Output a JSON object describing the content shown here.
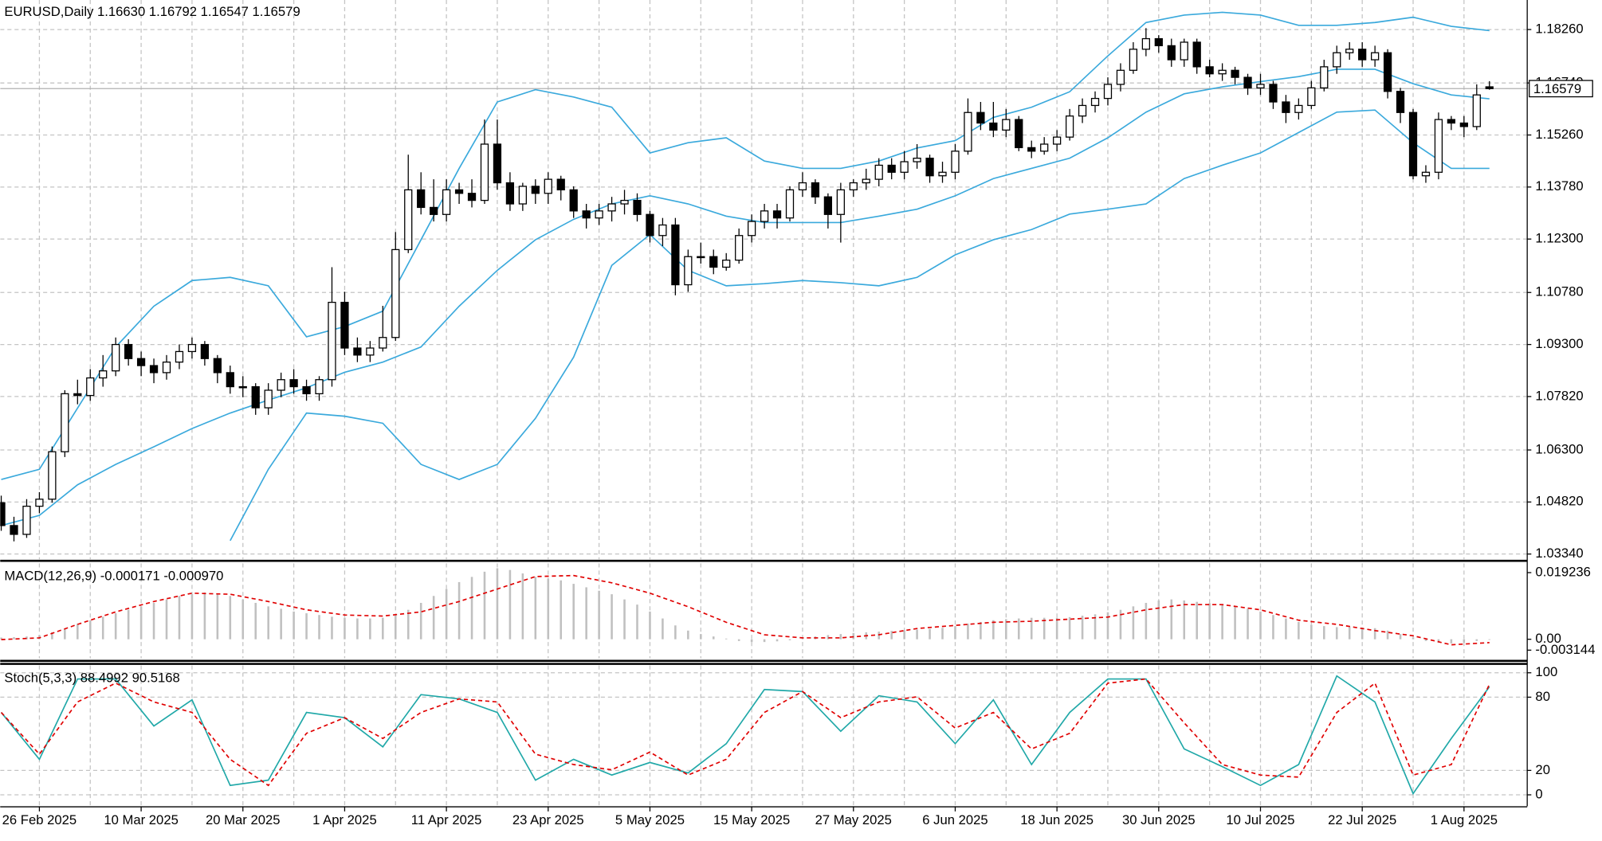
{
  "chart_data": [
    {
      "type": "candlestick",
      "title": "EURUSD,Daily  1.16630 1.16792 1.16547 1.16579",
      "price_label": "1.16579",
      "ylim": [
        1.0319,
        1.191
      ],
      "yticks": [
        {
          "value": 1.0334,
          "label": "1.03340"
        },
        {
          "value": 1.0482,
          "label": "1.04820"
        },
        {
          "value": 1.063,
          "label": "1.06300"
        },
        {
          "value": 1.0782,
          "label": "1.07820"
        },
        {
          "value": 1.093,
          "label": "1.09300"
        },
        {
          "value": 1.1078,
          "label": "1.10780"
        },
        {
          "value": 1.123,
          "label": "1.12300"
        },
        {
          "value": 1.1378,
          "label": "1.13780"
        },
        {
          "value": 1.1526,
          "label": "1.15260"
        },
        {
          "value": 1.1674,
          "label": "1.16740"
        },
        {
          "value": 1.1826,
          "label": "1.18260"
        }
      ],
      "grid": true,
      "candles": [
        [
          1.048,
          1.05,
          1.04,
          1.0415
        ],
        [
          1.0415,
          1.044,
          1.037,
          1.039
        ],
        [
          1.039,
          1.049,
          1.038,
          1.047
        ],
        [
          1.047,
          1.051,
          1.045,
          1.049
        ],
        [
          1.049,
          1.064,
          1.048,
          1.0625
        ],
        [
          1.0625,
          1.08,
          1.061,
          1.079
        ],
        [
          1.079,
          1.083,
          1.076,
          1.0785
        ],
        [
          1.0785,
          1.086,
          1.077,
          1.0835
        ],
        [
          1.0835,
          1.09,
          1.081,
          1.0855
        ],
        [
          1.0855,
          1.095,
          1.084,
          1.093
        ],
        [
          1.093,
          1.0945,
          1.087,
          1.089
        ],
        [
          1.089,
          1.091,
          1.084,
          1.087
        ],
        [
          1.087,
          1.089,
          1.082,
          1.085
        ],
        [
          1.085,
          1.09,
          1.083,
          1.088
        ],
        [
          1.088,
          1.093,
          1.086,
          1.091
        ],
        [
          1.091,
          1.095,
          1.089,
          1.093
        ],
        [
          1.093,
          1.094,
          1.087,
          1.089
        ],
        [
          1.089,
          1.09,
          1.082,
          1.085
        ],
        [
          1.085,
          1.087,
          1.079,
          1.081
        ],
        [
          1.081,
          1.084,
          1.078,
          1.081
        ],
        [
          1.081,
          1.082,
          1.073,
          1.075
        ],
        [
          1.075,
          1.082,
          1.073,
          1.08
        ],
        [
          1.08,
          1.085,
          1.078,
          1.083
        ],
        [
          1.083,
          1.086,
          1.079,
          1.081
        ],
        [
          1.081,
          1.083,
          1.077,
          1.079
        ],
        [
          1.079,
          1.084,
          1.077,
          1.083
        ],
        [
          1.083,
          1.115,
          1.081,
          1.105
        ],
        [
          1.105,
          1.108,
          1.09,
          1.092
        ],
        [
          1.092,
          1.095,
          1.088,
          1.09
        ],
        [
          1.09,
          1.094,
          1.088,
          1.092
        ],
        [
          1.092,
          1.104,
          1.091,
          1.095
        ],
        [
          1.095,
          1.125,
          1.094,
          1.12
        ],
        [
          1.12,
          1.147,
          1.119,
          1.137
        ],
        [
          1.137,
          1.142,
          1.13,
          1.132
        ],
        [
          1.132,
          1.14,
          1.128,
          1.13
        ],
        [
          1.13,
          1.14,
          1.128,
          1.137
        ],
        [
          1.137,
          1.139,
          1.133,
          1.136
        ],
        [
          1.136,
          1.14,
          1.132,
          1.134
        ],
        [
          1.134,
          1.157,
          1.133,
          1.15
        ],
        [
          1.15,
          1.157,
          1.137,
          1.139
        ],
        [
          1.139,
          1.142,
          1.131,
          1.133
        ],
        [
          1.133,
          1.139,
          1.131,
          1.138
        ],
        [
          1.138,
          1.14,
          1.133,
          1.136
        ],
        [
          1.136,
          1.142,
          1.133,
          1.14
        ],
        [
          1.14,
          1.141,
          1.134,
          1.137
        ],
        [
          1.137,
          1.138,
          1.129,
          1.131
        ],
        [
          1.131,
          1.133,
          1.126,
          1.129
        ],
        [
          1.129,
          1.133,
          1.127,
          1.131
        ],
        [
          1.131,
          1.135,
          1.128,
          1.133
        ],
        [
          1.133,
          1.137,
          1.13,
          1.134
        ],
        [
          1.134,
          1.136,
          1.128,
          1.13
        ],
        [
          1.13,
          1.131,
          1.122,
          1.124
        ],
        [
          1.124,
          1.129,
          1.121,
          1.127
        ],
        [
          1.127,
          1.129,
          1.107,
          1.11
        ],
        [
          1.11,
          1.12,
          1.108,
          1.118
        ],
        [
          1.118,
          1.122,
          1.116,
          1.118
        ],
        [
          1.118,
          1.12,
          1.113,
          1.115
        ],
        [
          1.115,
          1.119,
          1.114,
          1.117
        ],
        [
          1.117,
          1.126,
          1.116,
          1.124
        ],
        [
          1.124,
          1.13,
          1.122,
          1.128
        ],
        [
          1.128,
          1.133,
          1.126,
          1.131
        ],
        [
          1.131,
          1.133,
          1.126,
          1.129
        ],
        [
          1.129,
          1.138,
          1.128,
          1.137
        ],
        [
          1.137,
          1.142,
          1.135,
          1.139
        ],
        [
          1.139,
          1.14,
          1.133,
          1.135
        ],
        [
          1.135,
          1.136,
          1.126,
          1.13
        ],
        [
          1.13,
          1.139,
          1.122,
          1.137
        ],
        [
          1.137,
          1.14,
          1.135,
          1.139
        ],
        [
          1.139,
          1.143,
          1.137,
          1.14
        ],
        [
          1.14,
          1.146,
          1.138,
          1.144
        ],
        [
          1.144,
          1.146,
          1.14,
          1.142
        ],
        [
          1.142,
          1.148,
          1.14,
          1.145
        ],
        [
          1.145,
          1.15,
          1.143,
          1.146
        ],
        [
          1.146,
          1.147,
          1.139,
          1.141
        ],
        [
          1.141,
          1.145,
          1.139,
          1.142
        ],
        [
          1.142,
          1.15,
          1.14,
          1.148
        ],
        [
          1.148,
          1.163,
          1.147,
          1.159
        ],
        [
          1.159,
          1.162,
          1.154,
          1.156
        ],
        [
          1.156,
          1.162,
          1.152,
          1.154
        ],
        [
          1.154,
          1.16,
          1.152,
          1.157
        ],
        [
          1.157,
          1.158,
          1.148,
          1.149
        ],
        [
          1.149,
          1.151,
          1.146,
          1.148
        ],
        [
          1.148,
          1.152,
          1.147,
          1.15
        ],
        [
          1.15,
          1.154,
          1.148,
          1.152
        ],
        [
          1.152,
          1.16,
          1.151,
          1.158
        ],
        [
          1.158,
          1.163,
          1.156,
          1.161
        ],
        [
          1.161,
          1.165,
          1.159,
          1.163
        ],
        [
          1.163,
          1.169,
          1.161,
          1.167
        ],
        [
          1.167,
          1.173,
          1.165,
          1.171
        ],
        [
          1.171,
          1.179,
          1.17,
          1.177
        ],
        [
          1.177,
          1.183,
          1.175,
          1.18
        ],
        [
          1.18,
          1.181,
          1.176,
          1.178
        ],
        [
          1.178,
          1.18,
          1.172,
          1.174
        ],
        [
          1.174,
          1.18,
          1.172,
          1.179
        ],
        [
          1.179,
          1.18,
          1.17,
          1.172
        ],
        [
          1.172,
          1.174,
          1.169,
          1.17
        ],
        [
          1.17,
          1.173,
          1.168,
          1.171
        ],
        [
          1.171,
          1.172,
          1.167,
          1.169
        ],
        [
          1.169,
          1.17,
          1.164,
          1.166
        ],
        [
          1.166,
          1.17,
          1.164,
          1.167
        ],
        [
          1.167,
          1.168,
          1.16,
          1.162
        ],
        [
          1.162,
          1.164,
          1.156,
          1.159
        ],
        [
          1.159,
          1.163,
          1.157,
          1.161
        ],
        [
          1.161,
          1.168,
          1.16,
          1.166
        ],
        [
          1.166,
          1.174,
          1.165,
          1.172
        ],
        [
          1.172,
          1.178,
          1.17,
          1.176
        ],
        [
          1.176,
          1.179,
          1.174,
          1.177
        ],
        [
          1.177,
          1.179,
          1.172,
          1.174
        ],
        [
          1.174,
          1.178,
          1.172,
          1.176
        ],
        [
          1.176,
          1.177,
          1.163,
          1.165
        ],
        [
          1.165,
          1.166,
          1.156,
          1.159
        ],
        [
          1.159,
          1.16,
          1.14,
          1.141
        ],
        [
          1.141,
          1.144,
          1.139,
          1.142
        ],
        [
          1.142,
          1.159,
          1.14,
          1.157
        ],
        [
          1.157,
          1.158,
          1.154,
          1.156
        ],
        [
          1.156,
          1.158,
          1.152,
          1.155
        ],
        [
          1.155,
          1.167,
          1.154,
          1.164
        ],
        [
          1.1663,
          1.16792,
          1.16547,
          1.16579
        ]
      ],
      "series": [
        {
          "color": "#3aa9dc",
          "values": [
            1.0546,
            1.0575,
            1.0749,
            1.0923,
            1.1039,
            1.1112,
            1.1121,
            1.1097,
            1.0952,
            1.0981,
            1.1025,
            1.1228,
            1.1431,
            1.162,
            1.1655,
            1.1634,
            1.1605,
            1.1475,
            1.1504,
            1.1518,
            1.1452,
            1.1431,
            1.1431,
            1.1452,
            1.1489,
            1.151,
            1.1576,
            1.1605,
            1.1649,
            1.1751,
            1.1846,
            1.1867,
            1.1875,
            1.1867,
            1.1838,
            1.1838,
            1.1846,
            1.1861,
            1.1835,
            1.1823
          ]
        },
        {
          "color": "#3aa9dc",
          "values": [
            1.0415,
            1.0444,
            1.0531,
            1.0589,
            1.0639,
            1.0691,
            1.0735,
            1.0772,
            1.0807,
            1.0851,
            1.088,
            1.0923,
            1.1039,
            1.1141,
            1.1228,
            1.1286,
            1.133,
            1.1353,
            1.133,
            1.1295,
            1.1277,
            1.1277,
            1.1277,
            1.1295,
            1.1315,
            1.1353,
            1.1402,
            1.1431,
            1.146,
            1.1518,
            1.1591,
            1.1643,
            1.1663,
            1.1678,
            1.1692,
            1.1713,
            1.1713,
            1.1672,
            1.164,
            1.1629
          ]
        },
        {
          "color": "#3aa9dc",
          "values": [
            null,
            null,
            null,
            null,
            null,
            null,
            1.0372,
            1.0575,
            1.0735,
            1.0726,
            1.0706,
            1.0589,
            1.0546,
            1.0589,
            1.072,
            1.0894,
            1.1155,
            1.1243,
            1.1141,
            1.1097,
            1.1103,
            1.1112,
            1.1106,
            1.1097,
            1.1121,
            1.1185,
            1.1228,
            1.1257,
            1.1301,
            1.1315,
            1.133,
            1.1402,
            1.144,
            1.1475,
            1.1533,
            1.1591,
            1.1597,
            1.1504,
            1.1431,
            1.1431
          ]
        }
      ]
    },
    {
      "type": "macd",
      "title": "MACD(12,26,9) -0.000171 -0.000970",
      "ylim": [
        -0.0055,
        0.0219
      ],
      "yticks": [
        -0.003144,
        {
          "value": 0,
          "label": "0.00"
        },
        0.019236
      ],
      "histogram_color": "#c0c0c0",
      "histogram": [
        0.0005,
        0.0006,
        0.0008,
        0.0012,
        0.002,
        0.003,
        0.0045,
        0.0055,
        0.0065,
        0.0075,
        0.0085,
        0.0095,
        0.0105,
        0.0115,
        0.0125,
        0.013,
        0.0135,
        0.013,
        0.0125,
        0.0115,
        0.0105,
        0.0095,
        0.0088,
        0.008,
        0.0075,
        0.007,
        0.0065,
        0.0062,
        0.006,
        0.006,
        0.0062,
        0.007,
        0.0085,
        0.0105,
        0.0125,
        0.0145,
        0.0165,
        0.018,
        0.0195,
        0.0205,
        0.02,
        0.019,
        0.018,
        0.0175,
        0.017,
        0.016,
        0.015,
        0.014,
        0.013,
        0.0115,
        0.01,
        0.008,
        0.006,
        0.004,
        0.0025,
        0.0015,
        0.0008,
        0.0002,
        -0.0005,
        -0.0008,
        -0.0008,
        -0.0006,
        -0.0003,
        0.0002,
        0.0008,
        0.0012,
        0.0015,
        0.0018,
        0.002,
        0.0022,
        0.0024,
        0.0026,
        0.0028,
        0.003,
        0.0033,
        0.0038,
        0.0045,
        0.005,
        0.0055,
        0.0058,
        0.006,
        0.0062,
        0.0062,
        0.0062,
        0.0064,
        0.0068,
        0.0072,
        0.0078,
        0.0085,
        0.0095,
        0.0105,
        0.0112,
        0.0115,
        0.0112,
        0.0108,
        0.0104,
        0.01,
        0.0095,
        0.0088,
        0.008,
        0.007,
        0.006,
        0.005,
        0.0042,
        0.0038,
        0.0035,
        0.0035,
        0.0034,
        0.0032,
        0.0025,
        0.0015,
        0.0005,
        -0.0005,
        -0.001,
        -0.0012,
        -0.001,
        -0.0005,
        -0.000171
      ],
      "series": [
        {
          "color": "#e00000",
          "dashed": true,
          "values": [
            -0.0001,
            0.0004,
            0.0043,
            0.0079,
            0.0109,
            0.0133,
            0.013,
            0.0109,
            0.0085,
            0.007,
            0.0067,
            0.0079,
            0.0109,
            0.0145,
            0.0181,
            0.0184,
            0.0163,
            0.0133,
            0.0094,
            0.0049,
            0.0013,
            0.0004,
            0.0004,
            0.0013,
            0.0031,
            0.004,
            0.0049,
            0.0052,
            0.0058,
            0.0064,
            0.0085,
            0.01,
            0.01,
            0.0085,
            0.0055,
            0.0043,
            0.0025,
            0.001,
            -0.0016,
            -0.00097
          ]
        }
      ]
    },
    {
      "type": "line",
      "title": "Stoch(5,3,3) 88.4992 90.5168",
      "ylim": [
        -9.4,
        106
      ],
      "yticks": [
        0,
        20,
        80,
        100
      ],
      "grid": true,
      "series": [
        {
          "color": "#20a8a8",
          "values": [
            67.5,
            29.1,
            94.9,
            94.9,
            56.4,
            77.8,
            7.7,
            12,
            67.5,
            63.2,
            39.3,
            82.1,
            78.6,
            67.5,
            12,
            29.1,
            16.2,
            26.5,
            17.9,
            41.9,
            86.3,
            84.6,
            52.1,
            81.2,
            76.1,
            41.9,
            77.8,
            24.8,
            67.5,
            94.9,
            94.9,
            37.6,
            23.1,
            7.7,
            24.8,
            97.4,
            76.1,
            1,
            46.2,
            88.4992
          ]
        },
        {
          "color": "#e00000",
          "dashed": true,
          "values": [
            67.5,
            33.3,
            76.1,
            91.5,
            76.1,
            67.5,
            29.1,
            7.7,
            50.4,
            63.2,
            46.2,
            67.5,
            78.6,
            76.1,
            33.3,
            24.8,
            20.5,
            35,
            16.2,
            29.1,
            67.5,
            84.6,
            63.2,
            76.1,
            80.3,
            54.7,
            67.5,
            37.6,
            50.4,
            91.5,
            94.9,
            59,
            24.8,
            16.2,
            14.5,
            67.5,
            91.5,
            16.2,
            24.8,
            90.5168
          ]
        }
      ]
    }
  ],
  "time_axis_labels": [
    "26 Feb 2025",
    "10 Mar 2025",
    "20 Mar 2025",
    "1 Apr 2025",
    "11 Apr 2025",
    "23 Apr 2025",
    "5 May 2025",
    "15 May 2025",
    "27 May 2025",
    "6 Jun 2025",
    "18 Jun 2025",
    "30 Jun 2025",
    "10 Jul 2025",
    "22 Jul 2025",
    "1 Aug 2025"
  ]
}
